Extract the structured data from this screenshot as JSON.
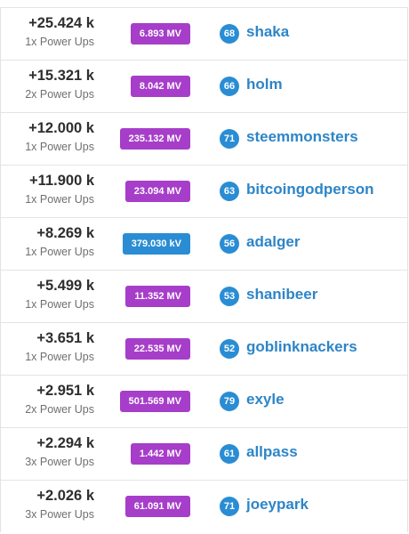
{
  "rows": [
    {
      "amount": "+25.424 k",
      "powerups": "1x Power Ups",
      "value": "6.893 MV",
      "unit": "mv",
      "level": "68",
      "name": "shaka"
    },
    {
      "amount": "+15.321 k",
      "powerups": "2x Power Ups",
      "value": "8.042 MV",
      "unit": "mv",
      "level": "66",
      "name": "holm"
    },
    {
      "amount": "+12.000 k",
      "powerups": "1x Power Ups",
      "value": "235.132 MV",
      "unit": "mv",
      "level": "71",
      "name": "steemmonsters"
    },
    {
      "amount": "+11.900 k",
      "powerups": "1x Power Ups",
      "value": "23.094 MV",
      "unit": "mv",
      "level": "63",
      "name": "bitcoingodperson"
    },
    {
      "amount": "+8.269 k",
      "powerups": "1x Power Ups",
      "value": "379.030 kV",
      "unit": "kv",
      "level": "56",
      "name": "adalger"
    },
    {
      "amount": "+5.499 k",
      "powerups": "1x Power Ups",
      "value": "11.352 MV",
      "unit": "mv",
      "level": "53",
      "name": "shanibeer"
    },
    {
      "amount": "+3.651 k",
      "powerups": "1x Power Ups",
      "value": "22.535 MV",
      "unit": "mv",
      "level": "52",
      "name": "goblinknackers"
    },
    {
      "amount": "+2.951 k",
      "powerups": "2x Power Ups",
      "value": "501.569 MV",
      "unit": "mv",
      "level": "79",
      "name": "exyle"
    },
    {
      "amount": "+2.294 k",
      "powerups": "3x Power Ups",
      "value": "1.442 MV",
      "unit": "mv",
      "level": "61",
      "name": "allpass"
    },
    {
      "amount": "+2.026 k",
      "powerups": "3x Power Ups",
      "value": "61.091 MV",
      "unit": "mv",
      "level": "71",
      "name": "joeypark"
    }
  ],
  "colors": {
    "mv_badge": "#a63ec9",
    "kv_badge": "#2a8dd4",
    "level_badge": "#2a8dd4",
    "name_link": "#2d85c8"
  }
}
